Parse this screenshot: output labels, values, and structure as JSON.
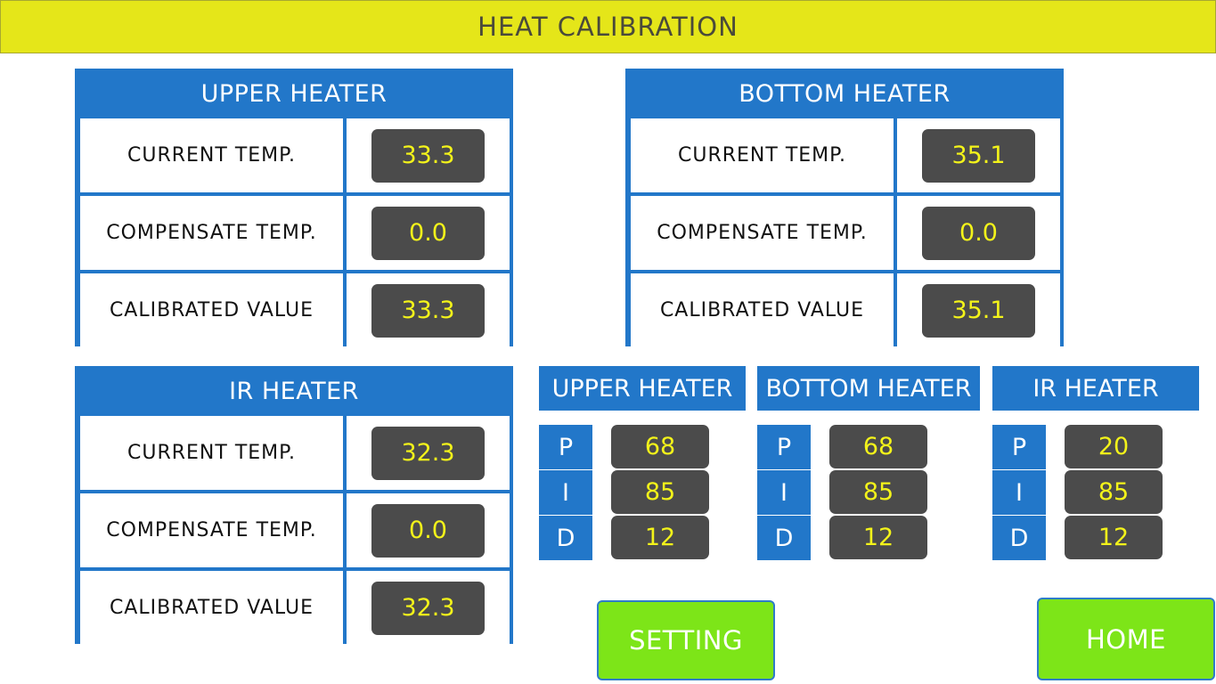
{
  "title": "HEAT CALIBRATION",
  "panels": [
    {
      "title": "UPPER HEATER",
      "rows": [
        {
          "label": "CURRENT TEMP.",
          "value": "33.3"
        },
        {
          "label": "COMPENSATE TEMP.",
          "value": "0.0"
        },
        {
          "label": "CALIBRATED VALUE",
          "value": "33.3"
        }
      ]
    },
    {
      "title": "BOTTOM HEATER",
      "rows": [
        {
          "label": "CURRENT TEMP.",
          "value": "35.1"
        },
        {
          "label": "COMPENSATE TEMP.",
          "value": "0.0"
        },
        {
          "label": "CALIBRATED VALUE",
          "value": "35.1"
        }
      ]
    },
    {
      "title": "IR HEATER",
      "rows": [
        {
          "label": "CURRENT TEMP.",
          "value": "32.3"
        },
        {
          "label": "COMPENSATE TEMP.",
          "value": "0.0"
        },
        {
          "label": "CALIBRATED VALUE",
          "value": "32.3"
        }
      ]
    }
  ],
  "pid": [
    {
      "title": "UPPER HEATER",
      "p": "68",
      "i": "85",
      "d": "12"
    },
    {
      "title": "BOTTOM HEATER",
      "p": "68",
      "i": "85",
      "d": "12"
    },
    {
      "title": "IR HEATER",
      "p": "20",
      "i": "85",
      "d": "12"
    }
  ],
  "pid_letters": {
    "p": "P",
    "i": "I",
    "d": "D"
  },
  "buttons": {
    "setting": "SETTING",
    "home": "HOME"
  },
  "colors": {
    "title_bar": "#e5e619",
    "panel_blue": "#2277c9",
    "value_box": "#4b4b4b",
    "value_text": "#f3f31a",
    "button_green": "#7de518"
  }
}
